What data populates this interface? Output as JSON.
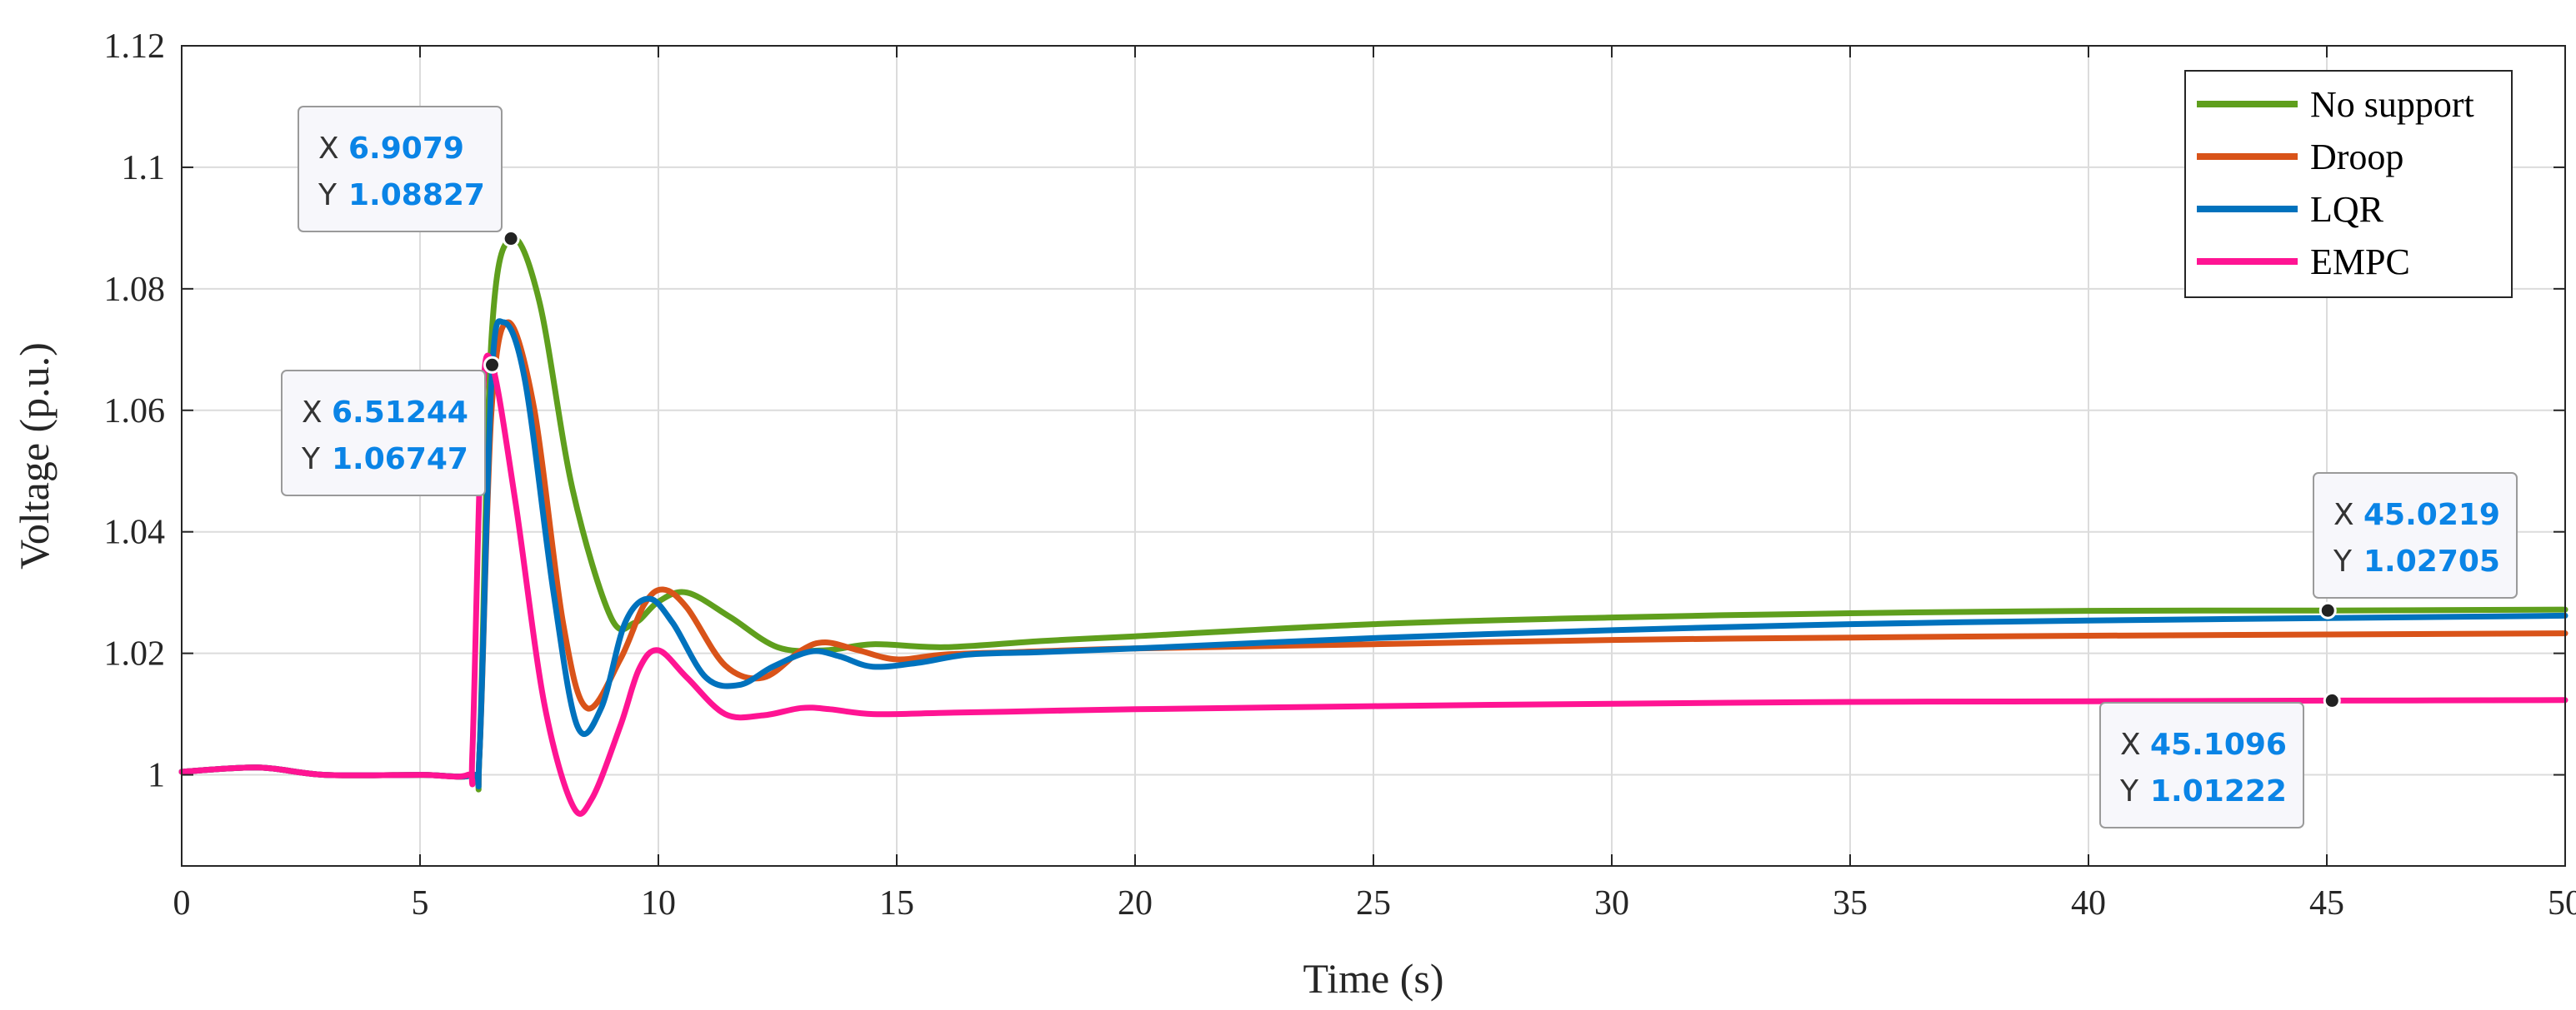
{
  "chart_data": {
    "type": "line",
    "title": "",
    "xlabel": "Time (s)",
    "ylabel": "Voltage (p.u.)",
    "xlim": [
      0,
      50
    ],
    "ylim": [
      0.985,
      1.12
    ],
    "xticks": [
      "0",
      "5",
      "10",
      "15",
      "20",
      "25",
      "30",
      "35",
      "40",
      "45",
      "50"
    ],
    "yticks": [
      "1",
      "1.02",
      "1.04",
      "1.06",
      "1.08",
      "1.1",
      "1.12"
    ],
    "grid": true,
    "legend_position": "top-right",
    "series": [
      {
        "name": "No support",
        "color": "#5f9f1d",
        "x": [
          0,
          1.6,
          3,
          5,
          6.1,
          6.25,
          6.5,
          6.9079,
          7.5,
          8.2,
          9,
          9.5,
          10,
          10.6,
          11.5,
          12.5,
          13.5,
          14.5,
          16,
          18,
          20,
          25,
          30,
          35,
          40,
          45.0219,
          50
        ],
        "y": [
          1.0005,
          1.0012,
          1.0,
          1.0,
          1.0,
          1.004,
          1.072,
          1.08827,
          1.078,
          1.047,
          1.026,
          1.025,
          1.0285,
          1.03,
          1.026,
          1.021,
          1.0205,
          1.0215,
          1.021,
          1.022,
          1.0228,
          1.0248,
          1.0259,
          1.0266,
          1.027,
          1.02705,
          1.0272
        ]
      },
      {
        "name": "Droop",
        "color": "#d95319",
        "x": [
          0,
          1.6,
          3,
          5,
          6.1,
          6.25,
          6.5,
          6.85,
          7.4,
          8.0,
          8.5,
          9.2,
          9.7,
          10.1,
          10.6,
          11.4,
          12.2,
          13.0,
          13.5,
          14.2,
          15,
          16,
          17.5,
          20,
          25,
          30,
          35,
          40,
          45,
          50
        ],
        "y": [
          1.0005,
          1.0012,
          1.0,
          1.0,
          1.0,
          1.004,
          1.06,
          1.0745,
          1.06,
          1.025,
          1.011,
          1.019,
          1.028,
          1.0305,
          1.0275,
          1.018,
          1.016,
          1.0205,
          1.0218,
          1.0205,
          1.019,
          1.0198,
          1.0202,
          1.0208,
          1.0215,
          1.0222,
          1.0226,
          1.0229,
          1.0231,
          1.0233
        ]
      },
      {
        "name": "LQR",
        "color": "#0072bd",
        "x": [
          0,
          1.6,
          3,
          5,
          6.1,
          6.25,
          6.5,
          6.75,
          7.2,
          7.8,
          8.3,
          8.8,
          9.3,
          9.8,
          10.3,
          11.0,
          11.7,
          12.4,
          13.2,
          13.8,
          14.5,
          15.5,
          16.5,
          18,
          20,
          25,
          30,
          35,
          40,
          45,
          50
        ],
        "y": [
          1.0005,
          1.0012,
          1.0,
          1.0,
          1.0,
          1.004,
          1.065,
          1.0745,
          1.065,
          1.03,
          1.008,
          1.011,
          1.025,
          1.029,
          1.025,
          1.016,
          1.0148,
          1.0178,
          1.0203,
          1.0195,
          1.0178,
          1.0185,
          1.0198,
          1.0202,
          1.0208,
          1.0225,
          1.0238,
          1.0248,
          1.0254,
          1.0258,
          1.0262
        ]
      },
      {
        "name": "EMPC",
        "color": "#ff1493",
        "x": [
          0,
          1.6,
          3,
          5,
          6.0,
          6.1,
          6.3,
          6.51244,
          7.0,
          7.6,
          8.2,
          8.6,
          9.2,
          9.6,
          10.0,
          10.6,
          11.4,
          12.2,
          13.0,
          13.6,
          14.5,
          16,
          18,
          20,
          25,
          30,
          35,
          40,
          45.1096,
          50
        ],
        "y": [
          1.0005,
          1.0012,
          1.0,
          1.0,
          1.0,
          1.004,
          1.06,
          1.06747,
          1.045,
          1.012,
          0.995,
          0.996,
          1.008,
          1.0175,
          1.0205,
          1.016,
          1.01,
          1.0098,
          1.011,
          1.0108,
          1.01,
          1.0102,
          1.0105,
          1.0108,
          1.0113,
          1.0117,
          1.012,
          1.0121,
          1.01222,
          1.0123
        ]
      }
    ],
    "datatips": [
      {
        "series": "No support",
        "x": 6.9079,
        "y": 1.08827,
        "x_label": "X",
        "y_label": "Y",
        "x_text": "6.9079",
        "y_text": "1.08827"
      },
      {
        "series": "EMPC",
        "x": 6.51244,
        "y": 1.06747,
        "x_label": "X",
        "y_label": "Y",
        "x_text": "6.51244",
        "y_text": "1.06747"
      },
      {
        "series": "No support",
        "x": 45.0219,
        "y": 1.02705,
        "x_label": "X",
        "y_label": "Y",
        "x_text": "45.0219",
        "y_text": "1.02705"
      },
      {
        "series": "EMPC",
        "x": 45.1096,
        "y": 1.01222,
        "x_label": "X",
        "y_label": "Y",
        "x_text": "45.1096",
        "y_text": "1.01222"
      }
    ]
  }
}
